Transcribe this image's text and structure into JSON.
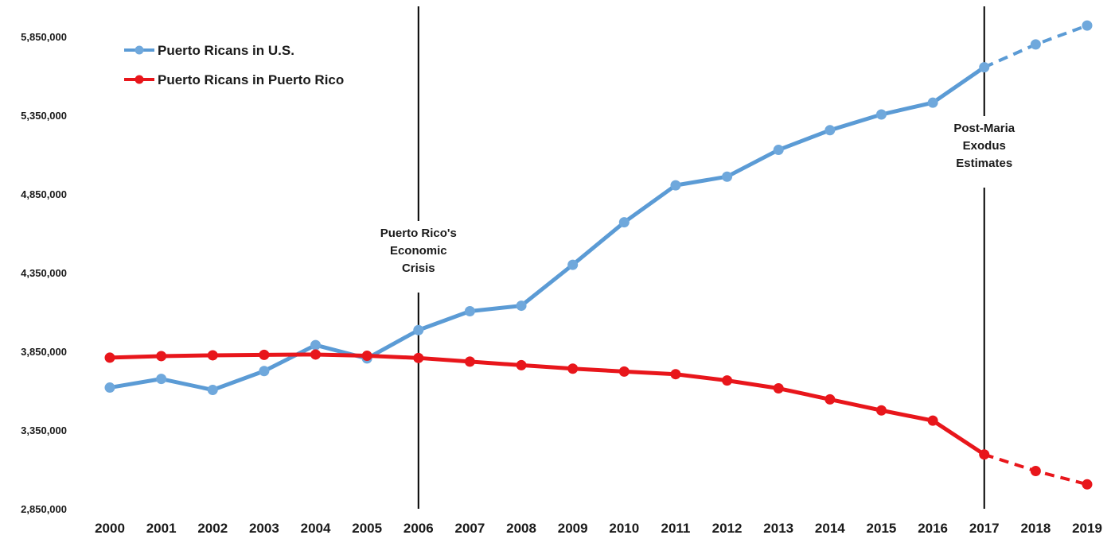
{
  "chart_data": {
    "type": "line",
    "title": "",
    "xlabel": "",
    "ylabel": "",
    "categories": [
      "2000",
      "2001",
      "2002",
      "2003",
      "2004",
      "2005",
      "2006",
      "2007",
      "2008",
      "2009",
      "2010",
      "2011",
      "2012",
      "2013",
      "2014",
      "2015",
      "2016",
      "2017",
      "2018",
      "2019"
    ],
    "yticks": [
      "2,850,000",
      "3,350,000",
      "3,850,000",
      "4,350,000",
      "4,850,000",
      "5,350,000",
      "5,850,000"
    ],
    "ylim": [
      2850000,
      5850000
    ],
    "grid": false,
    "legend_position": "top-left",
    "series": [
      {
        "name": "Puerto Ricans in U.S.",
        "color": "#5b9bd5",
        "values": [
          3620000,
          3675000,
          3605000,
          3725000,
          3890000,
          3805000,
          3985000,
          4105000,
          4140000,
          4400000,
          4670000,
          4905000,
          4960000,
          5130000,
          5255000,
          5355000,
          5430000,
          5655000,
          5800000,
          5920000
        ],
        "projected_from": "2017"
      },
      {
        "name": "Puerto Ricans in Puerto Rico",
        "color": "#e8161b",
        "values": [
          3810000,
          3820000,
          3825000,
          3828000,
          3830000,
          3822000,
          3808000,
          3785000,
          3762000,
          3740000,
          3722000,
          3705000,
          3665000,
          3615000,
          3545000,
          3475000,
          3410000,
          3195000,
          3090000,
          3005000
        ],
        "projected_from": "2017"
      }
    ],
    "annotations": [
      {
        "x": "2006",
        "lines": [
          "Puerto Rico's",
          "Economic",
          "Crisis"
        ]
      },
      {
        "x": "2017",
        "lines": [
          "Post-Maria",
          "Exodus",
          "Estimates"
        ]
      }
    ]
  }
}
